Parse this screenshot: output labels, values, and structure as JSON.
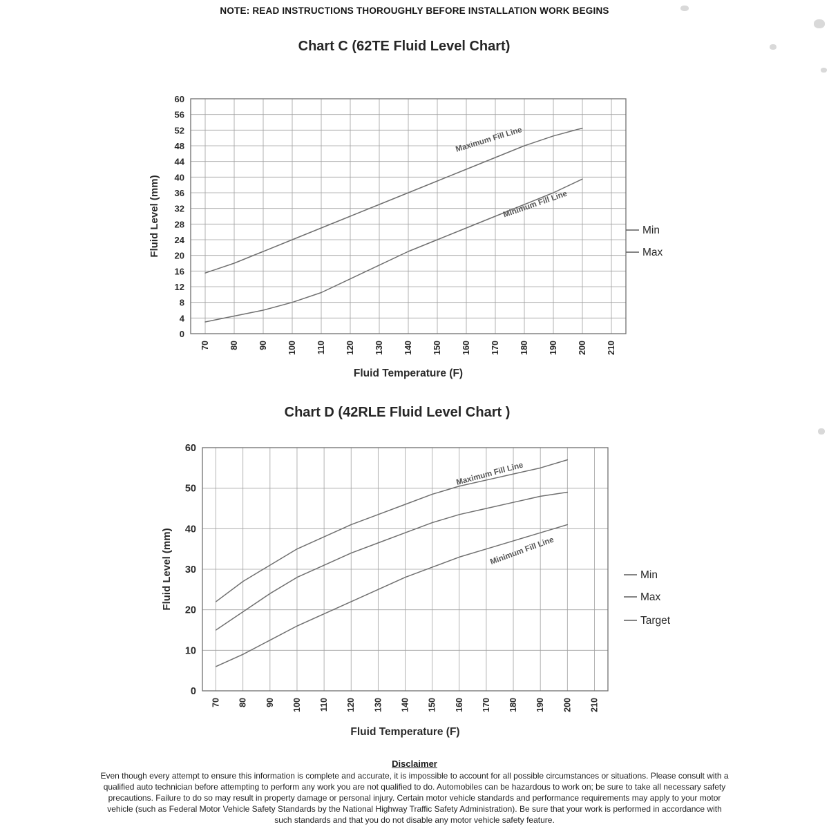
{
  "page": {
    "note": "NOTE: READ INSTRUCTIONS THOROUGHLY BEFORE INSTALLATION WORK BEGINS",
    "disclaimer_title": "Disclaimer",
    "disclaimer_body": "Even though every attempt to ensure this information is complete and accurate, it is impossible to account for all possible circumstances or situations.  Please consult with a qualified auto technician before attempting to perform any work you are not qualified to do.  Automobiles can be hazardous to work on; be sure to take all necessary safety precautions.  Failure to do so may result in property damage or personal injury.  Certain motor vehicle standards and performance requirements may apply to your motor vehicle (such as Federal Motor Vehicle Safety Standards by the National Highway Traffic Safety Administration).  Be sure that your work is performed in accordance with such standards and that you do not disable any motor vehicle safety feature."
  },
  "colors": {
    "grid": "#9f9f9f",
    "border": "#6f6f6f",
    "series": "#707070",
    "text": "#2a2a2a",
    "annotation": "#555555"
  },
  "chart_data": [
    {
      "type": "line",
      "title": "Chart C (62TE Fluid Level Chart)",
      "xlabel": "Fluid Temperature (F)",
      "ylabel": "Fluid Level (mm)",
      "xlim": [
        65,
        215
      ],
      "ylim": [
        0,
        60
      ],
      "x_ticks": [
        70,
        80,
        90,
        100,
        110,
        120,
        130,
        140,
        150,
        160,
        170,
        180,
        190,
        200,
        210
      ],
      "y_ticks": [
        0,
        4,
        8,
        12,
        16,
        20,
        24,
        28,
        32,
        36,
        40,
        44,
        48,
        52,
        56,
        60
      ],
      "grid": true,
      "legend_position": "right",
      "legend": [
        "Min",
        "Max"
      ],
      "x": [
        70,
        80,
        90,
        100,
        110,
        120,
        130,
        140,
        150,
        160,
        170,
        180,
        190,
        200
      ],
      "series": [
        {
          "name": "Min",
          "values": [
            3,
            4.5,
            6,
            8,
            10.5,
            14,
            17.5,
            21,
            24,
            27,
            30,
            33,
            36,
            39.5
          ]
        },
        {
          "name": "Max",
          "values": [
            15.5,
            18,
            21,
            24,
            27,
            30,
            33,
            36,
            39,
            42,
            45,
            48,
            50.5,
            52.5
          ]
        }
      ],
      "annotations": [
        {
          "text": "Maximum Fill Line",
          "x": 168,
          "y": 49,
          "angle": -17
        },
        {
          "text": "Minimum Fill Line",
          "x": 184,
          "y": 32.5,
          "angle": -19
        }
      ]
    },
    {
      "type": "line",
      "title": "Chart D (42RLE Fluid Level Chart )",
      "xlabel": "Fluid Temperature (F)",
      "ylabel": "Fluid Level (mm)",
      "xlim": [
        65,
        215
      ],
      "ylim": [
        0,
        60
      ],
      "x_ticks": [
        70,
        80,
        90,
        100,
        110,
        120,
        130,
        140,
        150,
        160,
        170,
        180,
        190,
        200,
        210
      ],
      "y_ticks": [
        0,
        10,
        20,
        30,
        40,
        50,
        60
      ],
      "grid": true,
      "legend_position": "right",
      "legend": [
        "Min",
        "Max",
        "Target"
      ],
      "x": [
        70,
        80,
        90,
        100,
        110,
        120,
        130,
        140,
        150,
        160,
        170,
        180,
        190,
        200
      ],
      "series": [
        {
          "name": "Min",
          "values": [
            6,
            9,
            12.5,
            16,
            19,
            22,
            25,
            28,
            30.5,
            33,
            35,
            37,
            39,
            41
          ]
        },
        {
          "name": "Max",
          "values": [
            22,
            27,
            31,
            35,
            38,
            41,
            43.5,
            46,
            48.5,
            50.5,
            52,
            53.5,
            55,
            57
          ]
        },
        {
          "name": "Target",
          "values": [
            15,
            19.5,
            24,
            28,
            31,
            34,
            36.5,
            39,
            41.5,
            43.5,
            45,
            46.5,
            48,
            49
          ]
        }
      ],
      "annotations": [
        {
          "text": "Maximum Fill Line",
          "x": 171.5,
          "y": 53,
          "angle": -15
        },
        {
          "text": "Minimum Fill Line",
          "x": 183.5,
          "y": 34,
          "angle": -20
        }
      ]
    }
  ]
}
